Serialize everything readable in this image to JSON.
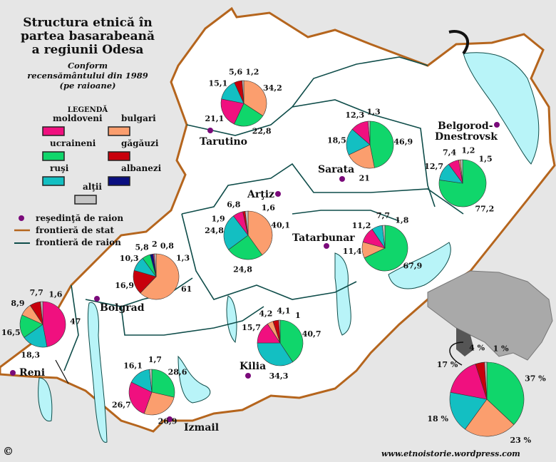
{
  "title": [
    "Structura etnică în",
    "partea basarabeană",
    "a regiunii Odesa"
  ],
  "subtitle": [
    "Conform",
    "recensământului din 1989",
    "(pe raioane)"
  ],
  "legend": {
    "title": "LEGENDĂ",
    "items": [
      {
        "key": "moldoveni",
        "label": "moldoveni",
        "color": "#f0107f"
      },
      {
        "key": "bulgari",
        "label": "bulgari",
        "color": "#fb9e6e"
      },
      {
        "key": "ucraineni",
        "label": "ucraineni",
        "color": "#10d66b"
      },
      {
        "key": "gagauzi",
        "label": "găgăuzi",
        "color": "#c8000c"
      },
      {
        "key": "rusi",
        "label": "ruşi",
        "color": "#13bfc2"
      },
      {
        "key": "albanezi",
        "label": "albanezi",
        "color": "#0a0f80"
      },
      {
        "key": "altii",
        "label": "alţii",
        "color": "#c4c4c4"
      }
    ],
    "seat": "reşedinţă de raion",
    "state_border": "frontieră de stat",
    "district_border": "frontieră de raion"
  },
  "colors": {
    "state_border": "#b5651d",
    "district_border": "#0f4d4a",
    "water": "#b8f4f8",
    "seat_dot": "#7a0a7a",
    "land": "#ffffff",
    "background": "#e6e6e6"
  },
  "chart_data": {
    "type": "pie",
    "unit": "%",
    "districts": [
      {
        "name": "Tarutino",
        "slices": [
          [
            "bulgari",
            34.2
          ],
          [
            "ucraineni",
            22.8
          ],
          [
            "moldoveni",
            21.1
          ],
          [
            "rusi",
            15.1
          ],
          [
            "gagauzi",
            5.6
          ],
          [
            "altii",
            1.2
          ]
        ]
      },
      {
        "name": "Sarata",
        "slices": [
          [
            "ucraineni",
            46.9
          ],
          [
            "bulgari",
            21
          ],
          [
            "rusi",
            18.5
          ],
          [
            "moldoveni",
            12.3
          ],
          [
            "altii",
            1.3
          ]
        ]
      },
      {
        "name": "Belgorod-Dnestrovsk",
        "slices": [
          [
            "ucraineni",
            77.2
          ],
          [
            "rusi",
            12.7
          ],
          [
            "moldoveni",
            7.4
          ],
          [
            "bulgari",
            1.2
          ],
          [
            "altii",
            1.5
          ]
        ]
      },
      {
        "name": "Arţiz",
        "slices": [
          [
            "bulgari",
            40.1
          ],
          [
            "ucraineni",
            24.8
          ],
          [
            "rusi",
            24.8
          ],
          [
            "moldoveni",
            6.8
          ],
          [
            "gagauzi",
            1.6
          ],
          [
            "altii",
            1.9
          ]
        ]
      },
      {
        "name": "Tatarbunar",
        "slices": [
          [
            "ucraineni",
            67.9
          ],
          [
            "bulgari",
            11.4
          ],
          [
            "moldoveni",
            11.2
          ],
          [
            "rusi",
            7.7
          ],
          [
            "altii",
            1.8
          ]
        ]
      },
      {
        "name": "Bolgrad",
        "slices": [
          [
            "bulgari",
            61
          ],
          [
            "gagauzi",
            16.9
          ],
          [
            "rusi",
            10.3
          ],
          [
            "ucraineni",
            5.8
          ],
          [
            "albanezi",
            2
          ],
          [
            "moldoveni",
            0.8
          ],
          [
            "altii",
            1.3
          ]
        ]
      },
      {
        "name": "Reni",
        "slices": [
          [
            "moldoveni",
            47
          ],
          [
            "rusi",
            18.3
          ],
          [
            "ucraineni",
            16.5
          ],
          [
            "bulgari",
            8.9
          ],
          [
            "gagauzi",
            7.7
          ],
          [
            "altii",
            1.6
          ]
        ]
      },
      {
        "name": "Kilia",
        "slices": [
          [
            "ucraineni",
            40.7
          ],
          [
            "rusi",
            34.3
          ],
          [
            "moldoveni",
            15.7
          ],
          [
            "bulgari",
            4.2
          ],
          [
            "gagauzi",
            4.1
          ],
          [
            "altii",
            1
          ]
        ]
      },
      {
        "name": "Izmail",
        "slices": [
          [
            "ucraineni",
            28.6
          ],
          [
            "bulgari",
            26.9
          ],
          [
            "moldoveni",
            26.7
          ],
          [
            "rusi",
            16.1
          ],
          [
            "altii",
            1.7
          ]
        ]
      },
      {
        "name": "",
        "summary": true,
        "label_suffix": " %",
        "slices": [
          [
            "ucraineni",
            37
          ],
          [
            "bulgari",
            23
          ],
          [
            "rusi",
            18
          ],
          [
            "moldoveni",
            17
          ],
          [
            "gagauzi",
            4
          ],
          [
            "altii",
            1
          ]
        ]
      }
    ]
  },
  "cities": {
    "tarutino": "Tarutino",
    "sarata": "Sarata",
    "belgorod": [
      "Belgorod-",
      "Dnestrovsk"
    ],
    "artiz": "Arţiz",
    "tatarbunar": "Tatarbunar",
    "bolgrad": "Bolgrad",
    "reni": "Reni",
    "kilia": "Kilia",
    "izmail": "Izmail"
  },
  "footer": {
    "copyright": "©",
    "website": "www.etnoistorie.wordpress.com"
  }
}
